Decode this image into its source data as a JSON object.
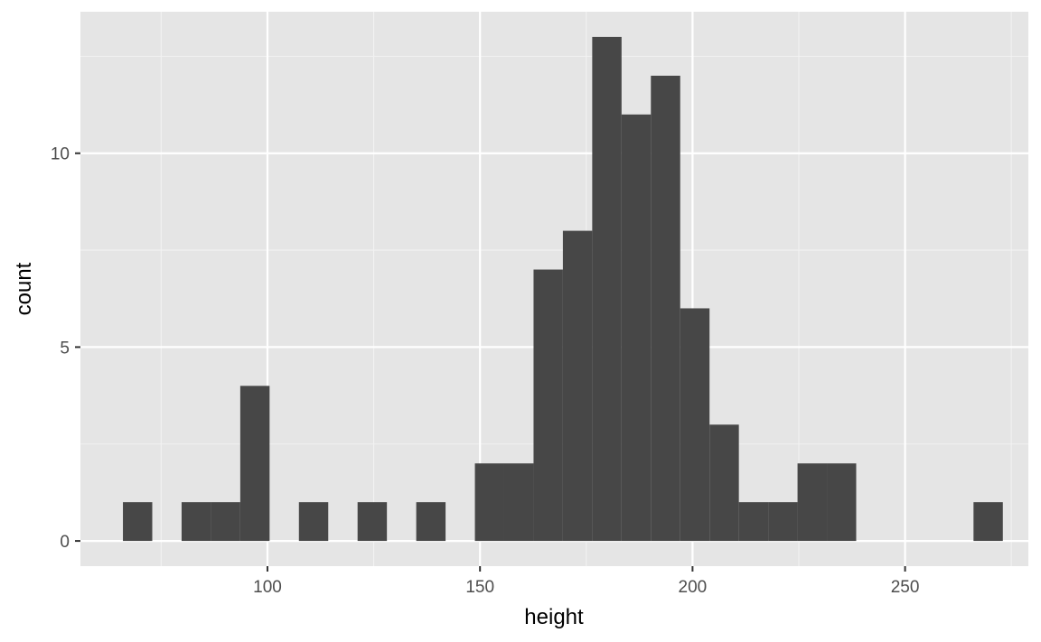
{
  "chart_data": {
    "type": "bar",
    "subtype": "histogram",
    "xlabel": "height",
    "ylabel": "count",
    "xlim": [
      56,
      279
    ],
    "ylim": [
      -0.65,
      13.65
    ],
    "x_ticks": [
      {
        "value": 100,
        "label": "100"
      },
      {
        "value": 150,
        "label": "150"
      },
      {
        "value": 200,
        "label": "200"
      },
      {
        "value": 250,
        "label": "250"
      }
    ],
    "x_minor_ticks": [
      75,
      125,
      175,
      225,
      275
    ],
    "y_ticks": [
      {
        "value": 0,
        "label": "0"
      },
      {
        "value": 5,
        "label": "5"
      },
      {
        "value": 10,
        "label": "10"
      }
    ],
    "y_minor_ticks": [
      2.5,
      7.5,
      12.5
    ],
    "bin_width": 6.9,
    "bins": [
      {
        "x0": 66.0,
        "x1": 72.9,
        "count": 1
      },
      {
        "x0": 72.9,
        "x1": 79.8,
        "count": 0
      },
      {
        "x0": 79.8,
        "x1": 86.7,
        "count": 1
      },
      {
        "x0": 86.7,
        "x1": 93.6,
        "count": 1
      },
      {
        "x0": 93.6,
        "x1": 100.5,
        "count": 4
      },
      {
        "x0": 100.5,
        "x1": 107.4,
        "count": 0
      },
      {
        "x0": 107.4,
        "x1": 114.3,
        "count": 1
      },
      {
        "x0": 114.3,
        "x1": 121.2,
        "count": 0
      },
      {
        "x0": 121.2,
        "x1": 128.1,
        "count": 1
      },
      {
        "x0": 128.1,
        "x1": 135.0,
        "count": 0
      },
      {
        "x0": 135.0,
        "x1": 141.9,
        "count": 1
      },
      {
        "x0": 141.9,
        "x1": 148.8,
        "count": 0
      },
      {
        "x0": 148.8,
        "x1": 155.7,
        "count": 2
      },
      {
        "x0": 155.7,
        "x1": 162.6,
        "count": 2
      },
      {
        "x0": 162.6,
        "x1": 169.5,
        "count": 7
      },
      {
        "x0": 169.5,
        "x1": 176.4,
        "count": 8
      },
      {
        "x0": 176.4,
        "x1": 183.3,
        "count": 13
      },
      {
        "x0": 183.3,
        "x1": 190.2,
        "count": 11
      },
      {
        "x0": 190.2,
        "x1": 197.1,
        "count": 12
      },
      {
        "x0": 197.1,
        "x1": 204.0,
        "count": 6
      },
      {
        "x0": 204.0,
        "x1": 210.9,
        "count": 3
      },
      {
        "x0": 210.9,
        "x1": 217.8,
        "count": 1
      },
      {
        "x0": 217.8,
        "x1": 224.7,
        "count": 1
      },
      {
        "x0": 224.7,
        "x1": 231.6,
        "count": 2
      },
      {
        "x0": 231.6,
        "x1": 238.5,
        "count": 2
      },
      {
        "x0": 238.5,
        "x1": 245.4,
        "count": 0
      },
      {
        "x0": 245.4,
        "x1": 252.3,
        "count": 0
      },
      {
        "x0": 252.3,
        "x1": 259.2,
        "count": 0
      },
      {
        "x0": 259.2,
        "x1": 266.1,
        "count": 0
      },
      {
        "x0": 266.1,
        "x1": 273.0,
        "count": 1
      }
    ],
    "grid": true,
    "legend": "none",
    "colors": {
      "panel_background": "#e5e5e5",
      "grid_major": "#ffffff",
      "grid_minor": "#f2f2f2",
      "bar_fill": "#474747",
      "tick_mark": "#333333",
      "tick_label": "#4d4d4d",
      "axis_title": "#000000"
    }
  }
}
